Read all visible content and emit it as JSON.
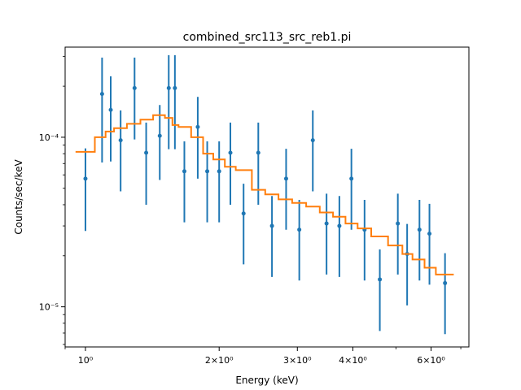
{
  "chart_data": {
    "type": "scatter",
    "title": "combined_src113_src_reb1.pi",
    "xlabel": "Energy (keV)",
    "ylabel": "Counts/sec/keV",
    "xscale": "log",
    "yscale": "log",
    "xlim": [
      0.9,
      7.3
    ],
    "ylim": [
      5.8e-06,
      0.00034
    ],
    "grid": false,
    "x_ticks": [
      {
        "value": 1,
        "label": "10⁰"
      },
      {
        "value": 2,
        "label": "2×10⁰"
      },
      {
        "value": 3,
        "label": "3×10⁰"
      },
      {
        "value": 4,
        "label": "4×10⁰"
      },
      {
        "value": 6,
        "label": "6×10⁰"
      }
    ],
    "y_ticks": [
      {
        "value": 1e-05,
        "label": "10⁻⁵"
      },
      {
        "value": 0.0001,
        "label": "10⁻⁴"
      }
    ],
    "colors": {
      "data": "#1f77b4",
      "model": "#ff7f0e"
    },
    "series": [
      {
        "kind": "errorbar",
        "x": [
          1.0,
          1.09,
          1.14,
          1.2,
          1.29,
          1.37,
          1.47,
          1.54,
          1.59,
          1.67,
          1.79,
          1.88,
          2.0,
          2.12,
          2.27,
          2.45,
          2.63,
          2.83,
          3.03,
          3.25,
          3.49,
          3.73,
          3.97,
          4.25,
          4.6,
          5.05,
          5.3,
          5.65,
          5.95,
          6.45
        ],
        "y": [
          5.7e-05,
          0.00018,
          0.000145,
          9.6e-05,
          0.000195,
          8.1e-05,
          0.000102,
          0.000195,
          0.000195,
          6.3e-05,
          0.000115,
          6.3e-05,
          6.3e-05,
          8.1e-05,
          3.55e-05,
          8.1e-05,
          3e-05,
          5.7e-05,
          2.85e-05,
          9.6e-05,
          3.1e-05,
          3e-05,
          5.7e-05,
          2.85e-05,
          1.45e-05,
          3.1e-05,
          2.05e-05,
          2.85e-05,
          2.7e-05,
          1.38e-05
        ],
        "yerr_low": [
          2.9e-05,
          0.000109,
          7.3e-05,
          4.8e-05,
          9.8e-05,
          4.1e-05,
          4.6e-05,
          0.00011,
          0.00011,
          3.15e-05,
          5.8e-05,
          3.15e-05,
          3.15e-05,
          4.1e-05,
          1.77e-05,
          4.1e-05,
          1.5e-05,
          2.85e-05,
          1.42e-05,
          4.8e-05,
          1.55e-05,
          1.5e-05,
          2.85e-05,
          1.42e-05,
          7.3e-06,
          1.55e-05,
          1.03e-05,
          1.42e-05,
          1.35e-05,
          6.9e-06
        ],
        "yerr_high": [
          2.9e-05,
          0.000115,
          8.4e-05,
          4.8e-05,
          0.0001,
          4.1e-05,
          5.3e-05,
          0.00011,
          0.00011,
          3.15e-05,
          5.8e-05,
          3.15e-05,
          3.15e-05,
          4.1e-05,
          1.77e-05,
          4.1e-05,
          1.5e-05,
          2.85e-05,
          1.42e-05,
          4.8e-05,
          1.55e-05,
          1.5e-05,
          2.85e-05,
          1.42e-05,
          7.3e-06,
          1.55e-05,
          1.03e-05,
          1.42e-05,
          1.35e-05,
          6.9e-06
        ]
      },
      {
        "kind": "step",
        "x_edges": [
          0.95,
          1.05,
          1.11,
          1.16,
          1.24,
          1.33,
          1.42,
          1.51,
          1.57,
          1.62,
          1.73,
          1.84,
          1.94,
          2.06,
          2.18,
          2.37,
          2.54,
          2.72,
          2.92,
          3.14,
          3.37,
          3.61,
          3.85,
          4.1,
          4.4,
          4.8,
          5.17,
          5.45,
          5.8,
          6.15,
          6.75
        ],
        "y": [
          8.2e-05,
          0.0001,
          0.000108,
          0.000113,
          0.00012,
          0.000127,
          0.000135,
          0.00013,
          0.000118,
          0.000115,
          0.0001,
          8e-05,
          7.4e-05,
          6.7e-05,
          6.4e-05,
          4.9e-05,
          4.6e-05,
          4.3e-05,
          4.1e-05,
          3.9e-05,
          3.6e-05,
          3.4e-05,
          3.1e-05,
          2.9e-05,
          2.6e-05,
          2.3e-05,
          2.05e-05,
          1.9e-05,
          1.7e-05,
          1.55e-05
        ]
      }
    ]
  }
}
